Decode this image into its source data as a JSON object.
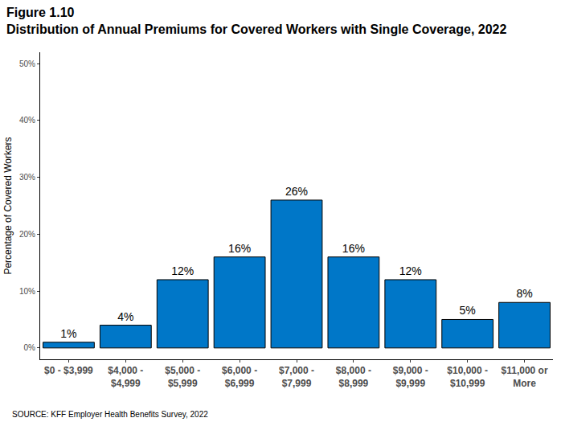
{
  "chart_data": {
    "type": "bar",
    "title": "Figure 1.10",
    "subtitle": "Distribution of Annual Premiums for Covered Workers with Single Coverage, 2022",
    "y_label": "Percentage of Covered Workers",
    "source": "SOURCE: KFF Employer Health Benefits Survey, 2022",
    "categories": [
      "$0 - $3,999",
      "$4,000 -\n$4,999",
      "$5,000 -\n$5,999",
      "$6,000 -\n$6,999",
      "$7,000 -\n$7,999",
      "$8,000 -\n$8,999",
      "$9,000 -\n$9,999",
      "$10,000 -\n$10,999",
      "$11,000 or\nMore"
    ],
    "values": [
      1,
      4,
      12,
      16,
      26,
      16,
      12,
      5,
      8
    ],
    "value_labels": [
      "1%",
      "4%",
      "12%",
      "16%",
      "26%",
      "16%",
      "12%",
      "5%",
      "8%"
    ],
    "color": "#0077c8",
    "data_labels": true,
    "grid": false,
    "ylim": [
      -2,
      52
    ],
    "yticks": [
      {
        "value": 0,
        "label": "0%"
      },
      {
        "value": 10,
        "label": "10%"
      },
      {
        "value": 20,
        "label": "20%"
      },
      {
        "value": 30,
        "label": "30%"
      },
      {
        "value": 40,
        "label": "40%"
      },
      {
        "value": 50,
        "label": "50%"
      }
    ]
  }
}
